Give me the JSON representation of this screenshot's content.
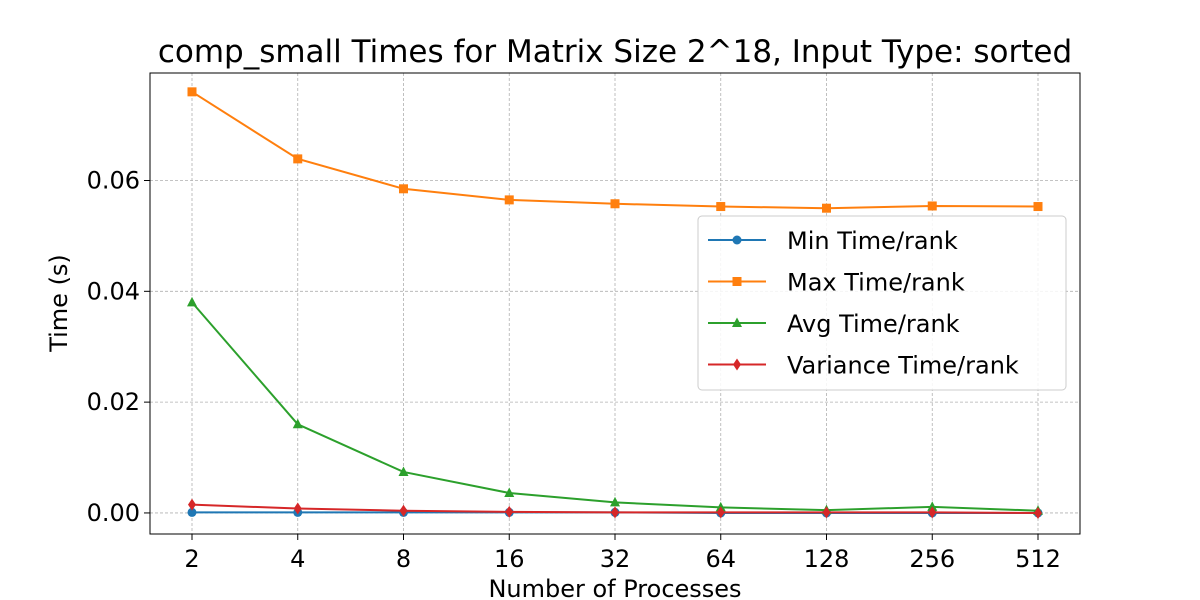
{
  "chart_data": {
    "type": "line",
    "title": "comp_small Times for Matrix Size 2^18, Input Type: sorted",
    "xlabel": "Number of Processes",
    "ylabel": "Time (s)",
    "x": [
      "2",
      "4",
      "8",
      "16",
      "32",
      "64",
      "128",
      "256",
      "512"
    ],
    "ylim": [
      -0.0038,
      0.0794
    ],
    "yticks": [
      "0.00",
      "0.02",
      "0.04",
      "0.06"
    ],
    "grid": true,
    "legend_position": "right",
    "series": [
      {
        "name": "Min Time/rank",
        "color": "#1f77b4",
        "marker": "circle",
        "values": [
          0.0001,
          0.0001,
          0.0001,
          0.0001,
          0.0001,
          0.0,
          0.0,
          0.0,
          0.0
        ]
      },
      {
        "name": "Max Time/rank",
        "color": "#ff7f0e",
        "marker": "square",
        "values": [
          0.076,
          0.0639,
          0.0585,
          0.0565,
          0.0558,
          0.0553,
          0.055,
          0.0554,
          0.0553
        ]
      },
      {
        "name": "Avg Time/rank",
        "color": "#2ca02c",
        "marker": "triangle",
        "values": [
          0.038,
          0.016,
          0.0074,
          0.0036,
          0.0019,
          0.001,
          0.0005,
          0.0011,
          0.0004
        ]
      },
      {
        "name": "Variance Time/rank",
        "color": "#d62728",
        "marker": "diamond",
        "values": [
          0.0015,
          0.0008,
          0.0004,
          0.0002,
          0.0001,
          0.0001,
          0.0001,
          0.0001,
          0.0
        ]
      }
    ]
  }
}
